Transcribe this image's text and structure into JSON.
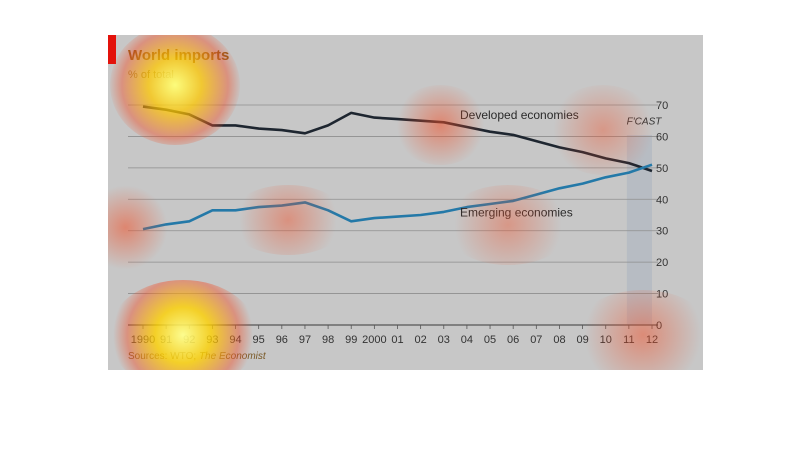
{
  "chart_data": {
    "type": "line",
    "title": "World imports",
    "subtitle": "% of total",
    "source_prefix": "Sources: WTO;",
    "source_italic": "The Economist",
    "forecast_label": "F'CAST",
    "x_labels": [
      "1990",
      "91",
      "92",
      "93",
      "94",
      "95",
      "96",
      "97",
      "98",
      "99",
      "2000",
      "01",
      "02",
      "03",
      "04",
      "05",
      "06",
      "07",
      "08",
      "09",
      "10",
      "11",
      "12"
    ],
    "x": [
      1990,
      1991,
      1992,
      1993,
      1994,
      1995,
      1996,
      1997,
      1998,
      1999,
      2000,
      2001,
      2002,
      2003,
      2004,
      2005,
      2006,
      2007,
      2008,
      2009,
      2010,
      2011,
      2012
    ],
    "y_ticks": [
      0,
      10,
      20,
      30,
      40,
      50,
      60,
      70
    ],
    "ylim": [
      0,
      70
    ],
    "grid": true,
    "forecast_start": 2011,
    "series": [
      {
        "name": "Developed economies",
        "color": "#1e2630",
        "values": [
          69.5,
          68.5,
          67,
          63.5,
          63.5,
          62.5,
          62,
          61,
          63.5,
          67.5,
          66,
          65.5,
          65,
          64.5,
          63,
          61.5,
          60.5,
          58.5,
          56.5,
          55,
          53,
          51.5,
          49
        ]
      },
      {
        "name": "Emerging economies",
        "color": "#2479a8",
        "values": [
          30.5,
          32,
          33,
          36.5,
          36.5,
          37.5,
          38,
          39,
          36.5,
          33,
          34,
          34.5,
          35,
          36,
          37.5,
          38.5,
          39.5,
          41.5,
          43.5,
          45,
          47,
          48.5,
          51
        ]
      }
    ]
  }
}
